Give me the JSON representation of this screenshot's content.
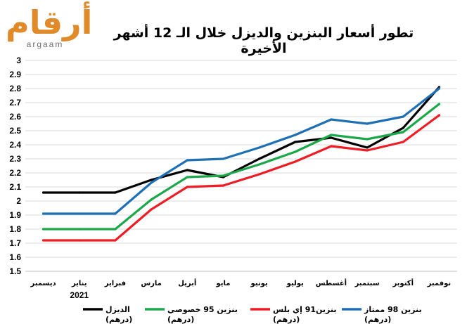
{
  "logo": {
    "arabic": "أرقام",
    "latin": "argaam"
  },
  "chart_data": {
    "type": "line",
    "title": "تطور أسعار البنزين والديزل خلال الـ 12 أشهر الأخيرة",
    "categories": [
      "ديسمبر",
      "يناير",
      "فبراير",
      "مارس",
      "أبريل",
      "مايو",
      "يونيو",
      "يوليو",
      "أغسطس",
      "سبتمبر",
      "أكتوبر",
      "نوفمبر"
    ],
    "year_label": "2021",
    "year_label_category_index": 1,
    "ylim": [
      1.5,
      3
    ],
    "yticks": [
      "1.5",
      "1.6",
      "1.7",
      "1.8",
      "1.9",
      "2",
      "2.1",
      "2.2",
      "2.3",
      "2.4",
      "2.5",
      "2.6",
      "2.7",
      "2.8",
      "2.9",
      "3"
    ],
    "grid": true,
    "legend_position": "bottom",
    "series": [
      {
        "name": "الديزل",
        "unit": "(درهم)",
        "color": "#000000",
        "values": [
          2.06,
          2.06,
          2.06,
          2.15,
          2.22,
          2.17,
          2.3,
          2.42,
          2.45,
          2.38,
          2.52,
          2.81
        ]
      },
      {
        "name": "بنزين 95  خصوصي",
        "unit": "(درهم)",
        "color": "#1aa84a",
        "values": [
          1.8,
          1.8,
          1.8,
          2.01,
          2.17,
          2.18,
          2.26,
          2.35,
          2.47,
          2.44,
          2.49,
          2.69
        ]
      },
      {
        "name": "بنزين91 إي بلس",
        "unit": "(درهم)",
        "color": "#ee1c24",
        "values": [
          1.72,
          1.72,
          1.72,
          1.94,
          2.1,
          2.11,
          2.19,
          2.28,
          2.39,
          2.36,
          2.42,
          2.61
        ]
      },
      {
        "name": "بنزين 98 ممتاز",
        "unit": "(درهم)",
        "color": "#1f6fb5",
        "values": [
          1.91,
          1.91,
          1.91,
          2.13,
          2.29,
          2.3,
          2.38,
          2.47,
          2.58,
          2.55,
          2.6,
          2.8
        ]
      }
    ]
  }
}
